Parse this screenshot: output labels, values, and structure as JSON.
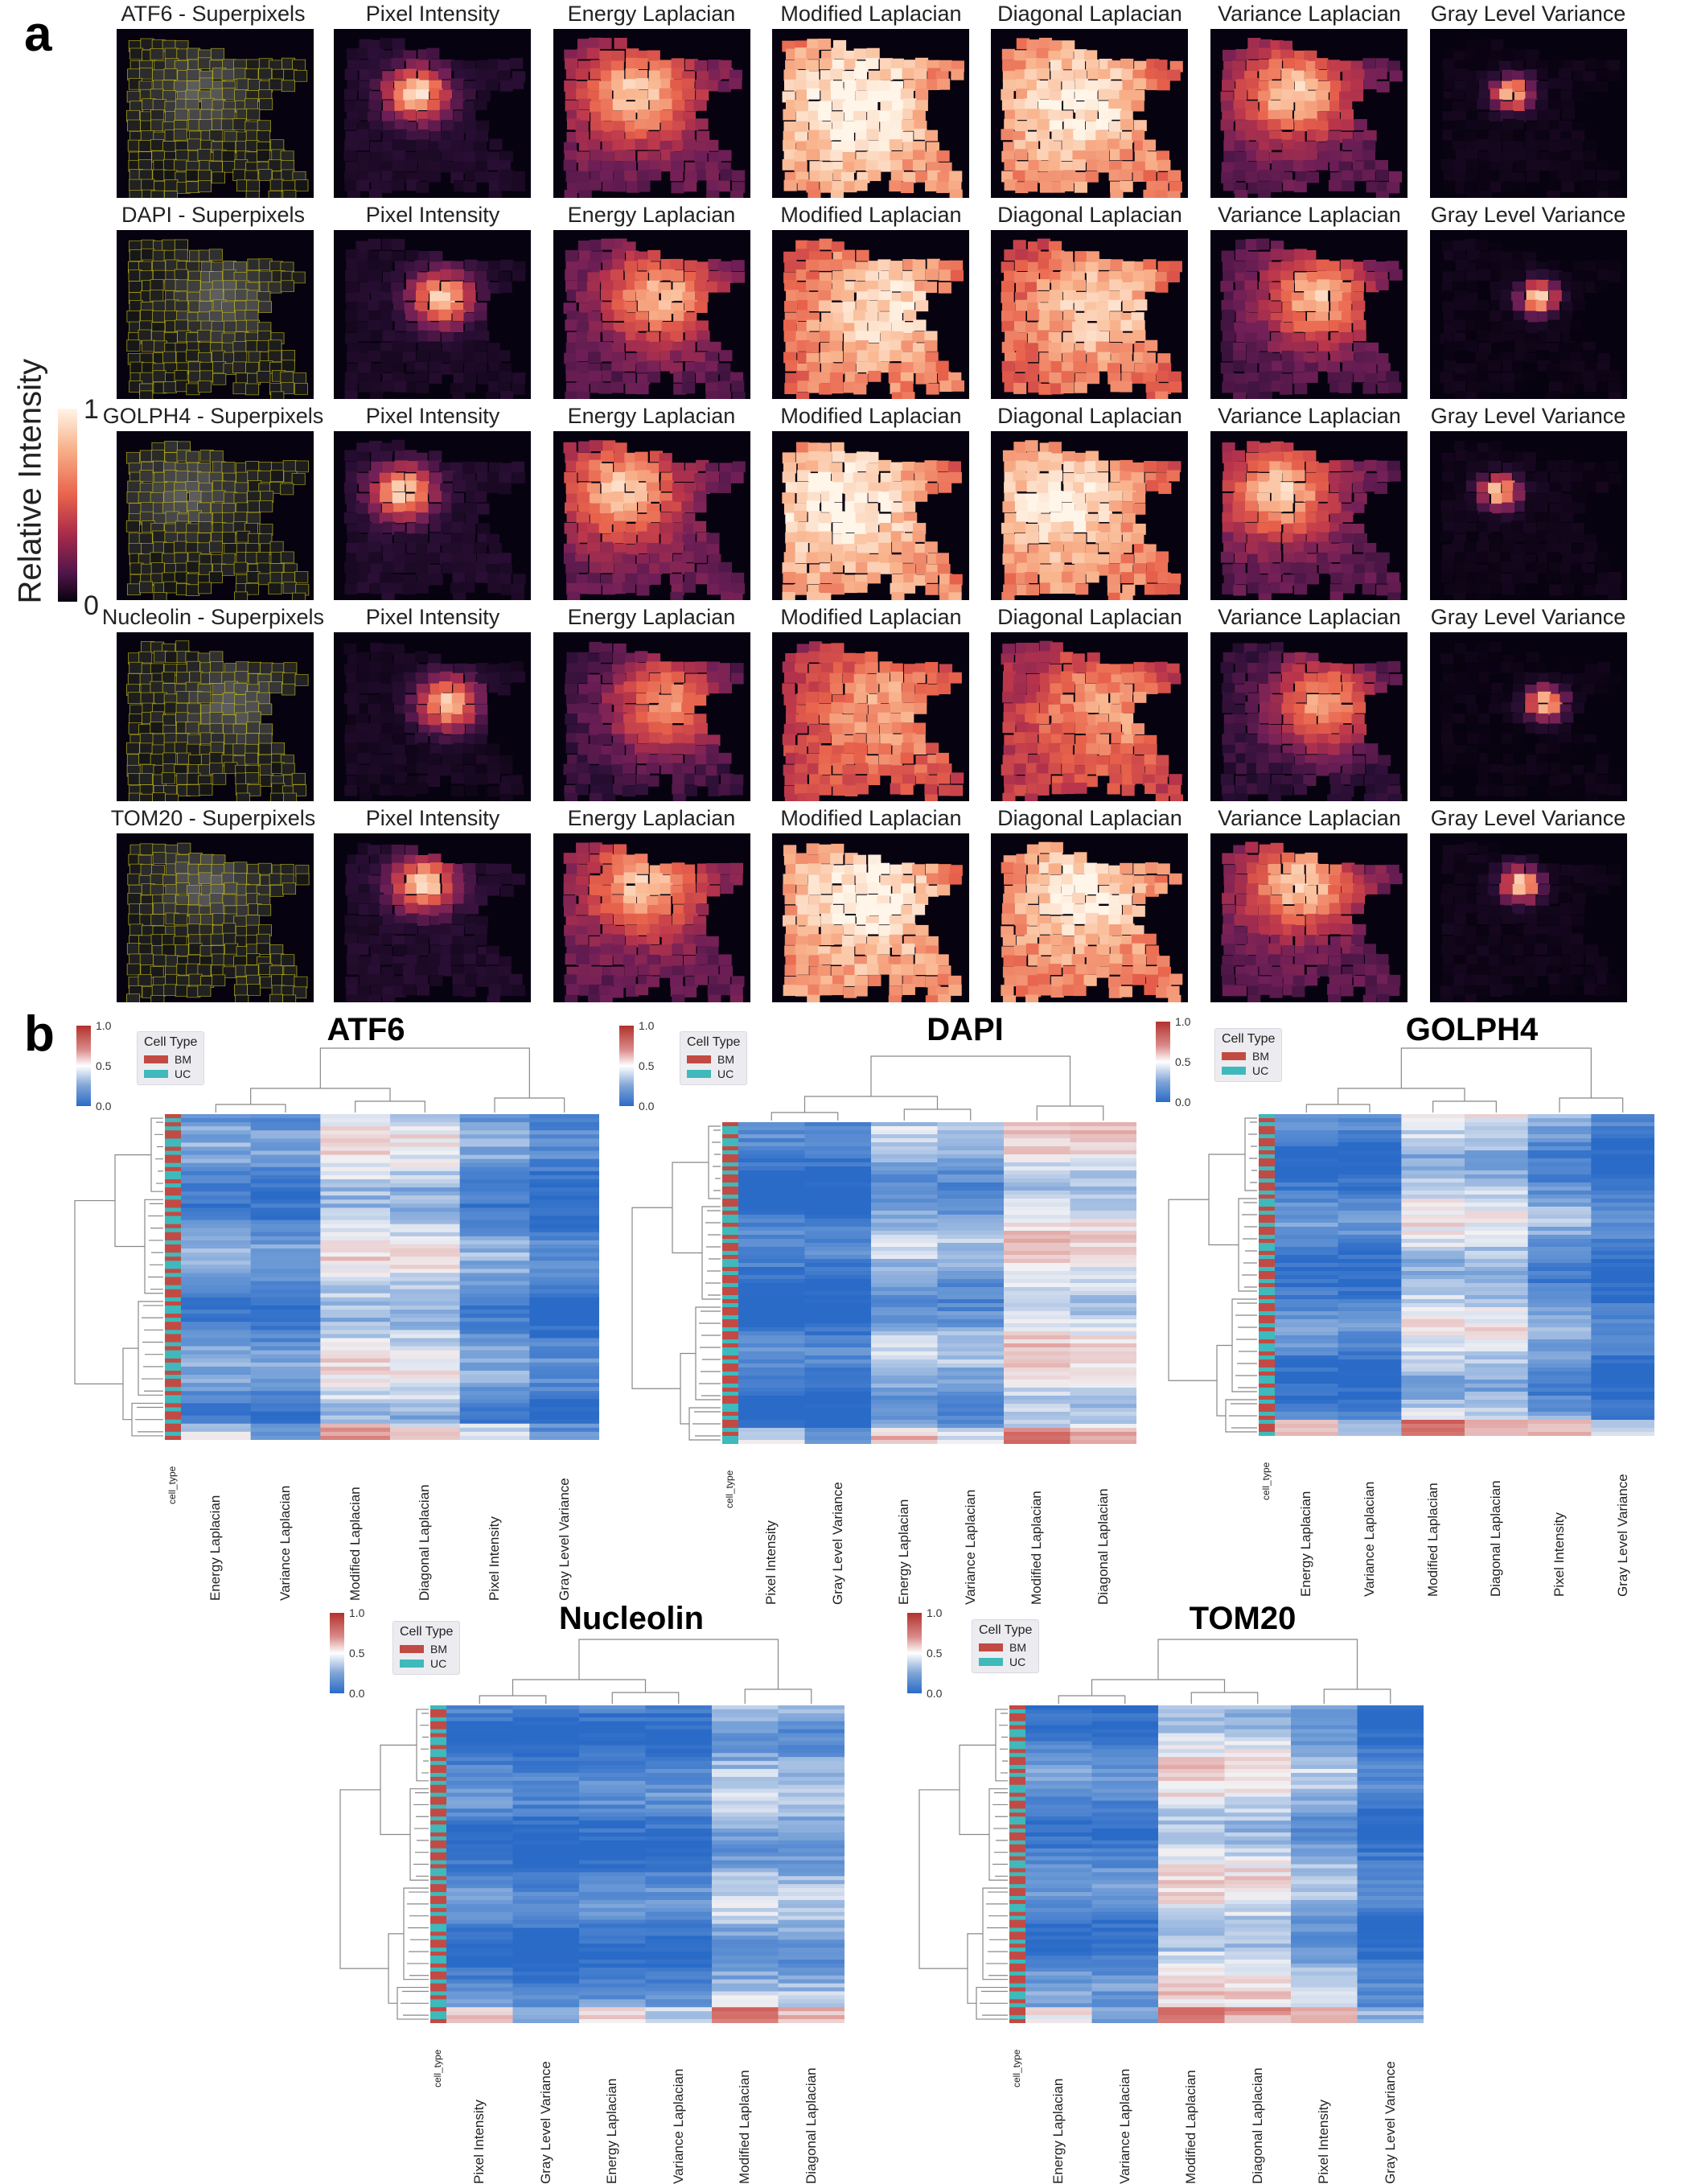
{
  "panel_a": {
    "letter": "a",
    "colorbar": {
      "label": "Relative Intensity",
      "max_label": "1",
      "min_label": "0"
    },
    "columns": [
      "Pixel Intensity",
      "Energy Laplacian",
      "Modified Laplacian",
      "Diagonal Laplacian",
      "Variance Laplacian",
      "Gray Level Variance"
    ],
    "rows": [
      {
        "stain": "ATF6 - Superpixels",
        "col_labels": [
          "Pixel Intensity",
          "Energy Laplacian",
          "Modified Laplacian",
          "Diagonal Laplacian",
          "Variance Laplacian",
          "Gray Level Variance"
        ]
      },
      {
        "stain": "DAPI - Superpixels",
        "col_labels": [
          "Pixel Intensity",
          "Energy Laplacian",
          "Modified Laplacian",
          "Diagonal Laplacian",
          "Variance Laplacian",
          "Gray Level Variance"
        ]
      },
      {
        "stain": "GOLPH4 - Superpixels",
        "col_labels": [
          "Pixel Intensity",
          "Energy Laplacian",
          "Modified Laplacian",
          "Diagonal Laplacian",
          "Variance Laplacian",
          "Gray Level Variance"
        ]
      },
      {
        "stain": "Nucleolin - Superpixels",
        "col_labels": [
          "Pixel Intensity",
          "Energy Laplacian",
          "Modified Laplacian",
          "Diagonal Laplacian",
          "Variance Laplacian",
          "Gray Level Variance"
        ]
      },
      {
        "stain": "TOM20 - Superpixels",
        "col_labels": [
          "Pixel Intensity",
          "Energy Laplacian",
          "Modified Laplacian",
          "Diagonal Laplacian",
          "Variance Laplacian",
          "Gray Level Variance"
        ]
      }
    ],
    "colors": {
      "background": "#07020f",
      "low": "#2b0f36",
      "mid": "#b8344b",
      "high": "#f9b48d",
      "peak": "#fff5e8",
      "superpixel_edge": "#c9c21a"
    }
  },
  "panel_b": {
    "letter": "b",
    "legend": {
      "title": "Cell Type",
      "items": [
        {
          "label": "BM",
          "color": "#c24a44"
        },
        {
          "label": "UC",
          "color": "#3fb9bb"
        }
      ]
    },
    "mini_colorbar": {
      "ticks": [
        "1.0",
        "0.5",
        "0.0"
      ]
    },
    "row_label": "cell_type",
    "colors": {
      "high": "#c23b35",
      "mid": "#f1f1f4",
      "low": "#2a6bc8"
    },
    "heatmaps": [
      {
        "title": "ATF6",
        "columns": [
          "Energy Laplacian",
          "Variance Laplacian",
          "Modified Laplacian",
          "Diagonal Laplacian",
          "Pixel Intensity",
          "Gray Level Variance"
        ],
        "col_levels": [
          0.18,
          0.15,
          0.45,
          0.42,
          0.2,
          0.08
        ]
      },
      {
        "title": "DAPI",
        "columns": [
          "Pixel Intensity",
          "Gray Level Variance",
          "Energy Laplacian",
          "Variance Laplacian",
          "Modified Laplacian",
          "Diagonal Laplacian"
        ],
        "col_levels": [
          0.06,
          0.05,
          0.3,
          0.27,
          0.5,
          0.48
        ]
      },
      {
        "title": "GOLPH4",
        "columns": [
          "Energy Laplacian",
          "Variance Laplacian",
          "Modified Laplacian",
          "Diagonal Laplacian",
          "Pixel Intensity",
          "Gray Level Variance"
        ],
        "col_levels": [
          0.12,
          0.1,
          0.42,
          0.4,
          0.22,
          0.07
        ]
      },
      {
        "title": "Nucleolin",
        "columns": [
          "Pixel Intensity",
          "Gray Level Variance",
          "Energy Laplacian",
          "Variance Laplacian",
          "Modified Laplacian",
          "Diagonal Laplacian"
        ],
        "col_levels": [
          0.12,
          0.05,
          0.1,
          0.1,
          0.33,
          0.3
        ]
      },
      {
        "title": "TOM20",
        "columns": [
          "Energy Laplacian",
          "Variance Laplacian",
          "Modified Laplacian",
          "Diagonal Laplacian",
          "Pixel Intensity",
          "Gray Level Variance"
        ],
        "col_levels": [
          0.14,
          0.12,
          0.48,
          0.45,
          0.3,
          0.07
        ]
      }
    ]
  }
}
